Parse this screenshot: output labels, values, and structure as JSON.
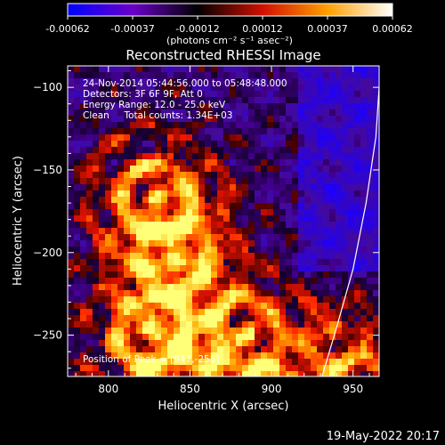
{
  "chart_data": {
    "type": "heatmap",
    "title": "Reconstructed RHESSI Image",
    "xlabel": "Heliocentric X (arcsec)",
    "ylabel": "Heliocentric Y (arcsec)",
    "xlim": [
      775,
      966
    ],
    "ylim": [
      -275,
      -87
    ],
    "xticks": [
      800,
      850,
      900,
      950
    ],
    "yticks": [
      -100,
      -150,
      -200,
      -250
    ],
    "colorbar": {
      "range": [
        -0.00062,
        0.00062
      ],
      "ticks": [
        "-0.00062",
        "-0.00037",
        "-0.00012",
        "0.00012",
        "0.00037",
        "0.00062"
      ],
      "unit_label": "(photons cm⁻² s⁻¹ asec⁻²)",
      "colors": [
        "#0000ff",
        "#6a00c8",
        "#000000",
        "#d01000",
        "#ffa000",
        "#ffffff"
      ]
    },
    "annotations": [
      "24-Nov-2014 05:44:56.000 to 05:48:48.000",
      "Detectors: 3F 6F 9F, Att 0",
      "Energy Range: 12.0 - 25.0 keV",
      "Clean     Total counts: 1.34E+03"
    ],
    "peak_label": "Position of Peak = [947,-255]",
    "limb_curve": [
      [
        931,
        -275
      ],
      [
        940,
        -245
      ],
      [
        950,
        -210
      ],
      [
        958,
        -170
      ],
      [
        964,
        -130
      ],
      [
        966,
        -100
      ]
    ]
  },
  "footer": {
    "timestamp": "19-May-2022 20:17"
  }
}
